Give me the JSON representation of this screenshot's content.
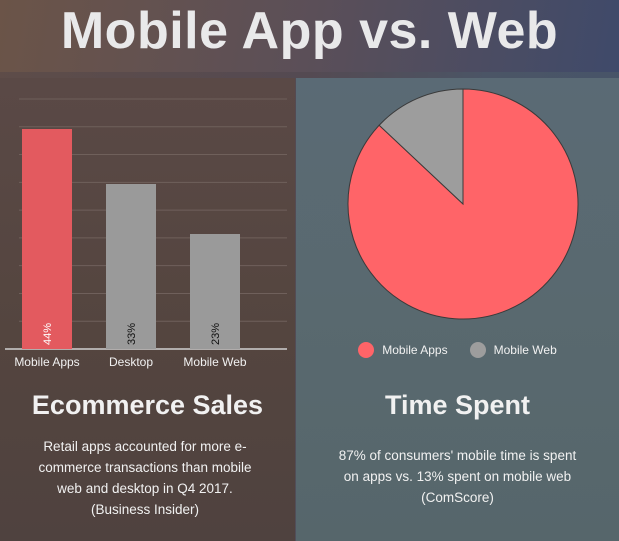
{
  "page": {
    "title": "Mobile App vs. Web"
  },
  "ecommerce": {
    "heading": "Ecommerce Sales",
    "description_lines": [
      "Retail apps accounted for more e-",
      "commerce transactions than mobile",
      "web and desktop in Q4 2017.",
      "(Business Insider)"
    ]
  },
  "time_spent": {
    "heading": "Time Spent",
    "description_lines": [
      "87% of consumers' mobile time is spent",
      "on apps vs. 13% spent on mobile web",
      "(ComScore)"
    ]
  },
  "chart_data": [
    {
      "type": "bar",
      "categories": [
        "Mobile Apps",
        "Desktop",
        "Mobile Web"
      ],
      "values": [
        44,
        33,
        23
      ],
      "value_labels": [
        "44%",
        "33%",
        "23%"
      ],
      "colors": [
        "#e35a5f",
        "#9a9a9a",
        "#9a9a9a"
      ],
      "grid": true,
      "ylim": [
        0,
        50
      ]
    },
    {
      "type": "pie",
      "labels": [
        "Mobile Apps",
        "Mobile Web"
      ],
      "values": [
        87,
        13
      ],
      "colors": [
        "#ff6468",
        "#9d9d9d"
      ],
      "legend": "bottom"
    }
  ]
}
